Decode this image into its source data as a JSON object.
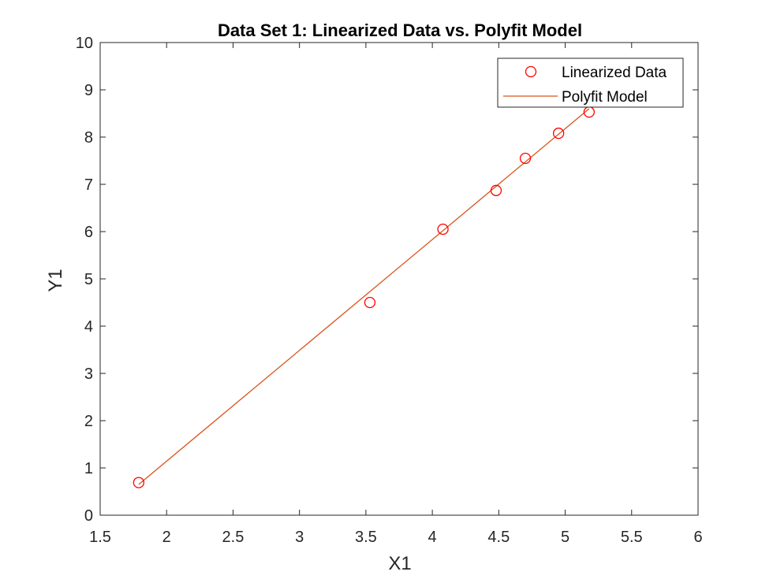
{
  "chart_data": {
    "type": "scatter",
    "title": "Data Set 1: Linearized Data vs. Polyfit Model",
    "xlabel": "X1",
    "ylabel": "Y1",
    "xlim": [
      1.5,
      6
    ],
    "ylim": [
      0,
      10
    ],
    "x_ticks": [
      1.5,
      2,
      2.5,
      3,
      3.5,
      4,
      4.5,
      5,
      5.5,
      6
    ],
    "x_tick_labels": [
      "1.5",
      "2",
      "2.5",
      "3",
      "3.5",
      "4",
      "4.5",
      "5",
      "5.5",
      "6"
    ],
    "y_ticks": [
      0,
      1,
      2,
      3,
      4,
      5,
      6,
      7,
      8,
      9,
      10
    ],
    "y_tick_labels": [
      "0",
      "1",
      "2",
      "3",
      "4",
      "5",
      "6",
      "7",
      "8",
      "9",
      "10"
    ],
    "grid": false,
    "legend_position": "top-right",
    "series": [
      {
        "name": "Linearized Data",
        "kind": "marker",
        "marker": "circle",
        "color": "#ff0000",
        "x": [
          1.79,
          3.53,
          4.08,
          4.48,
          4.7,
          4.95,
          5.18
        ],
        "y": [
          0.69,
          4.5,
          6.05,
          6.87,
          7.55,
          8.08,
          8.53
        ]
      },
      {
        "name": "Polyfit Model",
        "kind": "line",
        "color": "#d95319",
        "x": [
          1.79,
          5.18
        ],
        "y": [
          0.65,
          8.6
        ]
      }
    ]
  }
}
